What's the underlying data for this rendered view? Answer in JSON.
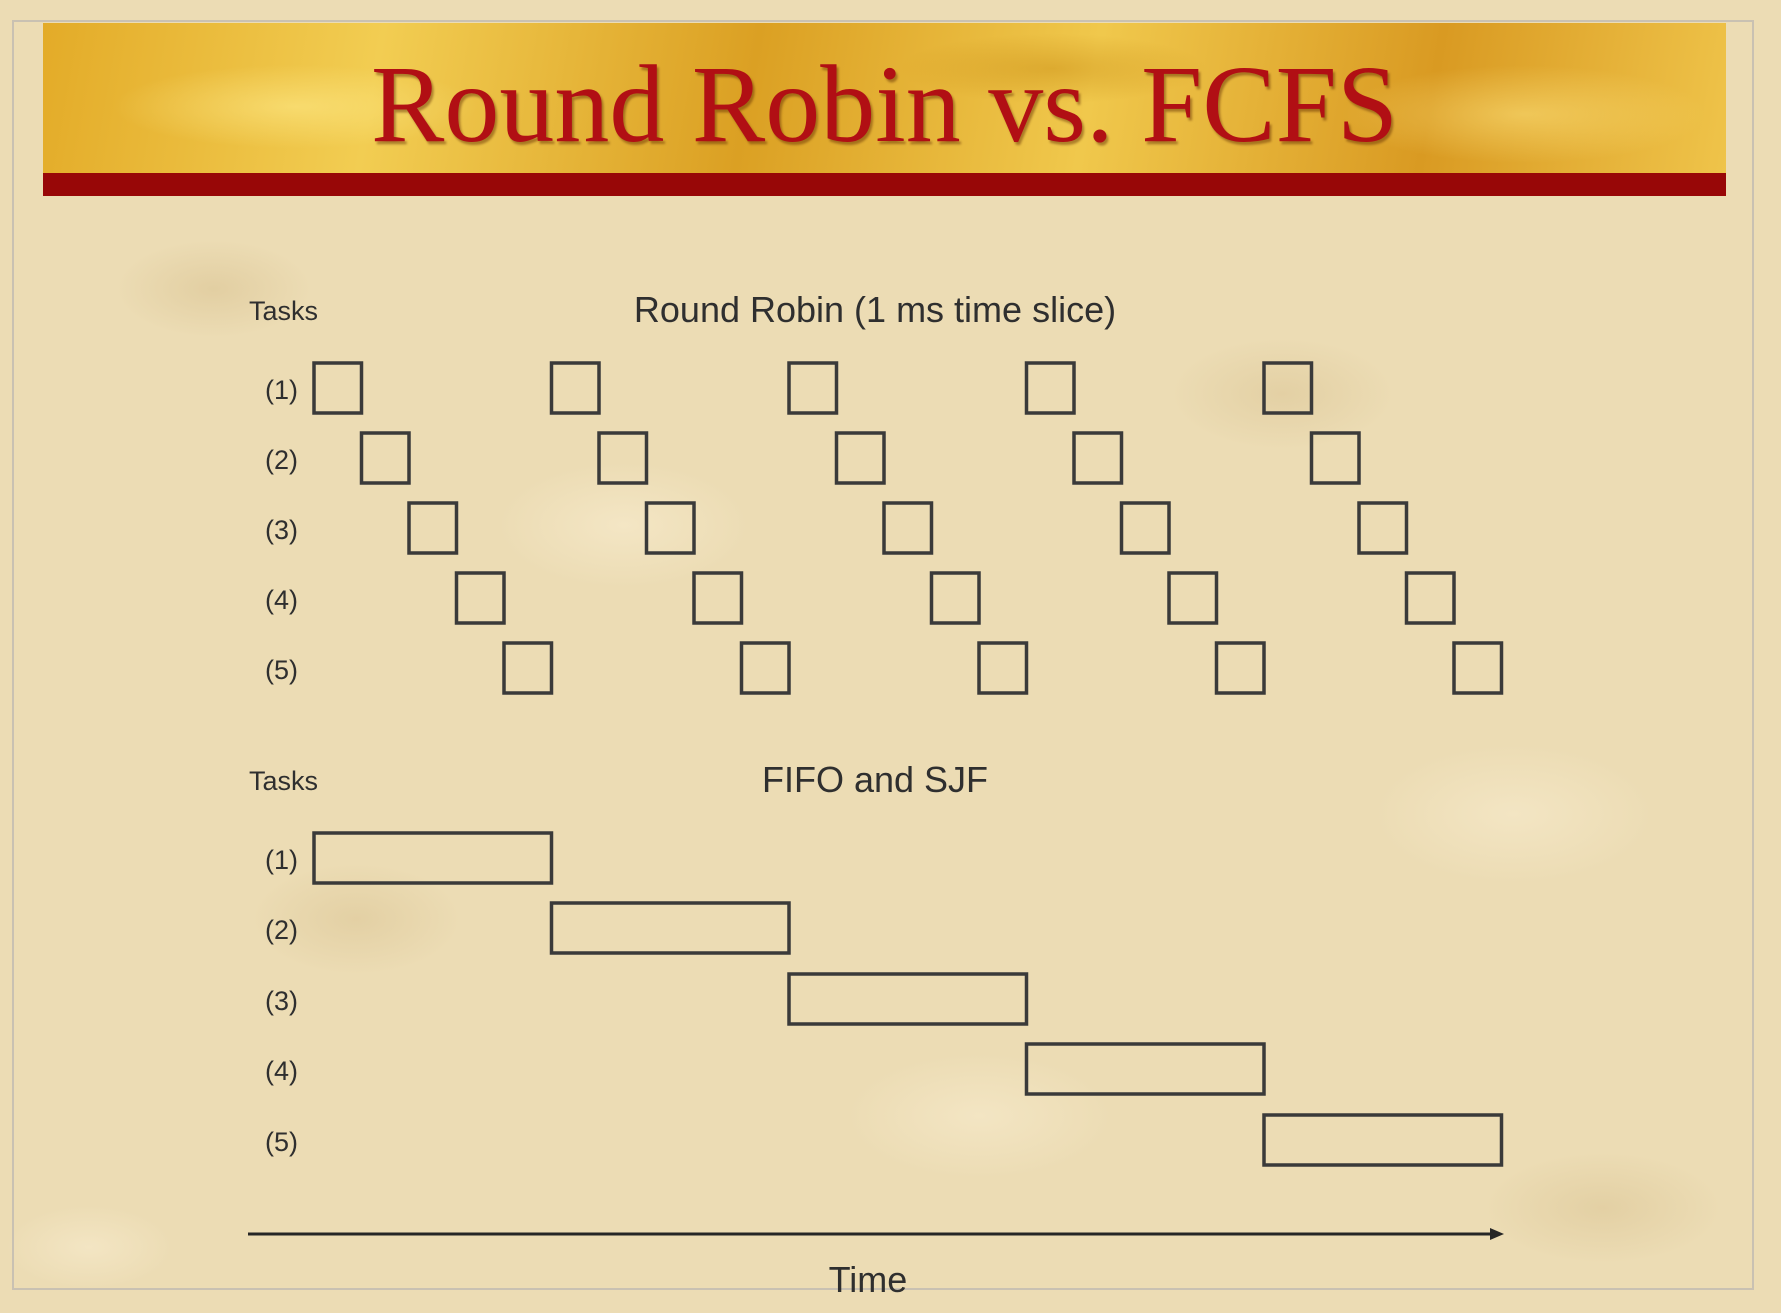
{
  "slide": {
    "title": "Round Robin vs. FCFS",
    "title_color": "#b10f14",
    "banner_bar_color": "#980707"
  },
  "round_robin": {
    "heading": "Round Robin (1 ms time slice)",
    "axis_label": "Tasks",
    "task_labels": [
      "(1)",
      "(2)",
      "(3)",
      "(4)",
      "(5)"
    ],
    "time_slice": 1,
    "tasks_count": 5,
    "rounds": 5,
    "schedule": [
      {
        "task": 1,
        "slots": [
          0,
          5,
          10,
          15,
          20
        ]
      },
      {
        "task": 2,
        "slots": [
          1,
          6,
          11,
          16,
          21
        ]
      },
      {
        "task": 3,
        "slots": [
          2,
          7,
          12,
          17,
          22
        ]
      },
      {
        "task": 4,
        "slots": [
          3,
          8,
          13,
          18,
          23
        ]
      },
      {
        "task": 5,
        "slots": [
          4,
          9,
          14,
          19,
          24
        ]
      }
    ]
  },
  "fifo_sjf": {
    "heading": "FIFO and SJF",
    "axis_label": "Tasks",
    "task_labels": [
      "(1)",
      "(2)",
      "(3)",
      "(4)",
      "(5)"
    ],
    "schedule": [
      {
        "task": 1,
        "start": 0,
        "duration": 5
      },
      {
        "task": 2,
        "start": 5,
        "duration": 5
      },
      {
        "task": 3,
        "start": 10,
        "duration": 5
      },
      {
        "task": 4,
        "start": 15,
        "duration": 5
      },
      {
        "task": 5,
        "start": 20,
        "duration": 5
      }
    ]
  },
  "time_axis": {
    "label": "Time",
    "total_units": 25
  }
}
